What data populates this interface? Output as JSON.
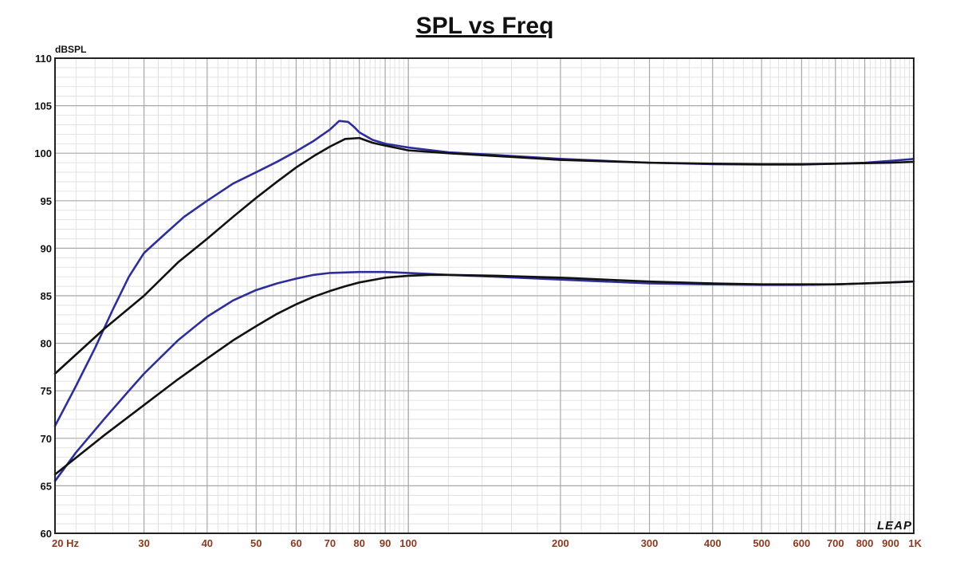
{
  "chart_data": {
    "type": "line",
    "title": "SPL vs Freq",
    "ylabel": "dBSPL",
    "xscale": "log",
    "xlim": [
      20,
      1000
    ],
    "ylim": [
      60,
      110
    ],
    "grid": true,
    "x_tick_labels": [
      {
        "value": 20,
        "label": "20  Hz"
      },
      {
        "value": 30,
        "label": "30"
      },
      {
        "value": 40,
        "label": "40"
      },
      {
        "value": 50,
        "label": "50"
      },
      {
        "value": 60,
        "label": "60"
      },
      {
        "value": 70,
        "label": "70"
      },
      {
        "value": 80,
        "label": "80"
      },
      {
        "value": 90,
        "label": "90"
      },
      {
        "value": 100,
        "label": "100"
      },
      {
        "value": 200,
        "label": "200"
      },
      {
        "value": 300,
        "label": "300"
      },
      {
        "value": 400,
        "label": "400"
      },
      {
        "value": 500,
        "label": "500"
      },
      {
        "value": 600,
        "label": "600"
      },
      {
        "value": 700,
        "label": "700"
      },
      {
        "value": 800,
        "label": "800"
      },
      {
        "value": 900,
        "label": "900"
      },
      {
        "value": 1000,
        "label": "1K"
      }
    ],
    "y_tick_labels": [
      "60",
      "65",
      "70",
      "75",
      "80",
      "85",
      "90",
      "95",
      "100",
      "105",
      "110"
    ],
    "colors": {
      "blue": "#2e2e9a",
      "black": "#111111",
      "grid": "#b4b4b4",
      "xtick": "#8a3b1f"
    },
    "series": [
      {
        "color": "#2e2e9a",
        "points": [
          [
            20,
            71.3
          ],
          [
            22,
            75.5
          ],
          [
            24,
            79.5
          ],
          [
            26,
            83.5
          ],
          [
            28,
            87.0
          ],
          [
            30,
            89.5
          ],
          [
            33,
            91.5
          ],
          [
            36,
            93.3
          ],
          [
            40,
            95.0
          ],
          [
            45,
            96.8
          ],
          [
            50,
            98.0
          ],
          [
            55,
            99.1
          ],
          [
            60,
            100.2
          ],
          [
            65,
            101.3
          ],
          [
            70,
            102.5
          ],
          [
            73,
            103.4
          ],
          [
            76,
            103.3
          ],
          [
            78,
            102.8
          ],
          [
            80,
            102.2
          ],
          [
            85,
            101.4
          ],
          [
            90,
            101.0
          ],
          [
            100,
            100.6
          ],
          [
            120,
            100.1
          ],
          [
            150,
            99.8
          ],
          [
            200,
            99.4
          ],
          [
            300,
            99.0
          ],
          [
            400,
            98.85
          ],
          [
            500,
            98.8
          ],
          [
            600,
            98.8
          ],
          [
            700,
            98.9
          ],
          [
            800,
            99.0
          ],
          [
            900,
            99.2
          ],
          [
            1000,
            99.4
          ]
        ]
      },
      {
        "color": "#111111",
        "points": [
          [
            20,
            76.8
          ],
          [
            25,
            81.5
          ],
          [
            30,
            85.0
          ],
          [
            35,
            88.5
          ],
          [
            40,
            91.0
          ],
          [
            45,
            93.3
          ],
          [
            50,
            95.3
          ],
          [
            55,
            97.0
          ],
          [
            60,
            98.5
          ],
          [
            65,
            99.7
          ],
          [
            70,
            100.7
          ],
          [
            75,
            101.5
          ],
          [
            80,
            101.6
          ],
          [
            85,
            101.1
          ],
          [
            90,
            100.8
          ],
          [
            100,
            100.3
          ],
          [
            120,
            100.0
          ],
          [
            150,
            99.7
          ],
          [
            200,
            99.3
          ],
          [
            300,
            99.0
          ],
          [
            400,
            98.9
          ],
          [
            500,
            98.85
          ],
          [
            600,
            98.85
          ],
          [
            700,
            98.9
          ],
          [
            800,
            98.95
          ],
          [
            900,
            99.0
          ],
          [
            1000,
            99.1
          ]
        ]
      },
      {
        "color": "#2e2e9a",
        "points": [
          [
            20,
            65.5
          ],
          [
            22,
            68.5
          ],
          [
            25,
            72.0
          ],
          [
            28,
            75.0
          ],
          [
            30,
            76.8
          ],
          [
            35,
            80.3
          ],
          [
            40,
            82.8
          ],
          [
            45,
            84.5
          ],
          [
            50,
            85.6
          ],
          [
            55,
            86.3
          ],
          [
            60,
            86.8
          ],
          [
            65,
            87.2
          ],
          [
            70,
            87.4
          ],
          [
            80,
            87.5
          ],
          [
            90,
            87.5
          ],
          [
            100,
            87.4
          ],
          [
            120,
            87.2
          ],
          [
            150,
            87.0
          ],
          [
            200,
            86.7
          ],
          [
            300,
            86.3
          ],
          [
            400,
            86.2
          ],
          [
            500,
            86.15
          ],
          [
            600,
            86.15
          ],
          [
            700,
            86.2
          ],
          [
            800,
            86.3
          ],
          [
            900,
            86.4
          ],
          [
            1000,
            86.5
          ]
        ]
      },
      {
        "color": "#111111",
        "points": [
          [
            20,
            66.2
          ],
          [
            25,
            70.3
          ],
          [
            30,
            73.5
          ],
          [
            35,
            76.2
          ],
          [
            40,
            78.4
          ],
          [
            45,
            80.3
          ],
          [
            50,
            81.8
          ],
          [
            55,
            83.1
          ],
          [
            60,
            84.1
          ],
          [
            65,
            84.9
          ],
          [
            70,
            85.5
          ],
          [
            75,
            86.0
          ],
          [
            80,
            86.4
          ],
          [
            90,
            86.9
          ],
          [
            100,
            87.1
          ],
          [
            110,
            87.2
          ],
          [
            120,
            87.2
          ],
          [
            150,
            87.1
          ],
          [
            200,
            86.9
          ],
          [
            300,
            86.5
          ],
          [
            400,
            86.3
          ],
          [
            500,
            86.2
          ],
          [
            600,
            86.2
          ],
          [
            700,
            86.2
          ],
          [
            800,
            86.3
          ],
          [
            900,
            86.4
          ],
          [
            1000,
            86.5
          ]
        ]
      }
    ]
  },
  "logo_text": "LEAP"
}
